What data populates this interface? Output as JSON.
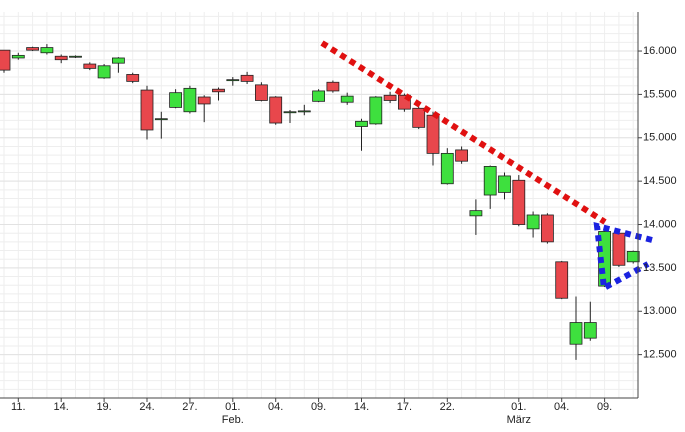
{
  "chart_data": {
    "type": "candlestick",
    "categories": [
      null,
      "11.",
      null,
      null,
      "14.",
      null,
      null,
      "19.",
      null,
      null,
      "24.",
      null,
      null,
      "27.",
      null,
      null,
      "01.",
      null,
      null,
      "04.",
      null,
      null,
      "09.",
      null,
      null,
      "14.",
      null,
      null,
      "17.",
      null,
      null,
      "22.",
      null,
      null,
      null,
      null,
      "01.",
      null,
      null,
      "04.",
      null,
      null,
      "09.",
      null,
      null
    ],
    "sub_categories": [
      null,
      null,
      null,
      null,
      null,
      null,
      null,
      null,
      null,
      null,
      null,
      null,
      null,
      null,
      null,
      null,
      "Feb.",
      null,
      null,
      null,
      null,
      null,
      null,
      null,
      null,
      null,
      null,
      null,
      null,
      null,
      null,
      null,
      null,
      null,
      null,
      null,
      "März",
      null,
      null,
      null,
      null,
      null,
      null,
      null,
      null
    ],
    "open": [
      16010,
      15920,
      16040,
      15980,
      15940,
      15930,
      15850,
      15690,
      15860,
      15730,
      15550,
      15210,
      15350,
      15300,
      15470,
      15560,
      15660,
      15720,
      15610,
      15470,
      15290,
      15300,
      15420,
      15640,
      15410,
      15130,
      15160,
      15490,
      15490,
      15340,
      15260,
      14470,
      14860,
      14100,
      14340,
      14370,
      14510,
      13950,
      14110,
      13570,
      12620,
      12690,
      13290,
      13900,
      13570
    ],
    "high": [
      16010,
      15980,
      16050,
      16080,
      15960,
      15950,
      15870,
      15850,
      15930,
      15750,
      15600,
      15300,
      15560,
      15600,
      15490,
      15580,
      15700,
      15760,
      15640,
      15480,
      15320,
      15380,
      15560,
      15660,
      15520,
      15220,
      15480,
      15530,
      15510,
      15360,
      15300,
      14880,
      14900,
      14290,
      14680,
      14600,
      14570,
      14150,
      14130,
      13580,
      13170,
      13110,
      13940,
      13920,
      13700
    ],
    "low": [
      15750,
      15900,
      16000,
      15960,
      15860,
      15920,
      15780,
      15680,
      15750,
      15630,
      14980,
      14990,
      15340,
      15280,
      15180,
      15430,
      15600,
      15620,
      15420,
      15150,
      15170,
      15260,
      15410,
      15520,
      15380,
      14850,
      15150,
      15400,
      15300,
      15100,
      14680,
      14460,
      14700,
      13880,
      14180,
      14290,
      13980,
      13850,
      13780,
      13140,
      12440,
      12660,
      13280,
      13510,
      13550
    ],
    "close": [
      15780,
      15950,
      16010,
      16040,
      15900,
      15940,
      15800,
      15830,
      15920,
      15650,
      15090,
      15220,
      15520,
      15570,
      15390,
      15530,
      15670,
      15650,
      15430,
      15170,
      15300,
      15310,
      15540,
      15540,
      15480,
      15190,
      15470,
      15430,
      15330,
      15120,
      14820,
      14820,
      14730,
      14160,
      14670,
      14560,
      14000,
      14110,
      13800,
      13150,
      12870,
      12870,
      13920,
      13530,
      13690
    ],
    "up_color": "#3ee03e",
    "down_color": "#e8474c",
    "ylim": [
      12000,
      16450
    ],
    "yticks": [
      {
        "value": 12500,
        "label": "12.500"
      },
      {
        "value": 13000,
        "label": "13.000"
      },
      {
        "value": 13500,
        "label": "13.500"
      },
      {
        "value": 14000,
        "label": "14.000"
      },
      {
        "value": 14500,
        "label": "14.500"
      },
      {
        "value": 15000,
        "label": "15.000"
      },
      {
        "value": 15500,
        "label": "15.500"
      },
      {
        "value": 16000,
        "label": "16.000"
      }
    ],
    "minor_ystep": 100,
    "grid": true
  }
}
